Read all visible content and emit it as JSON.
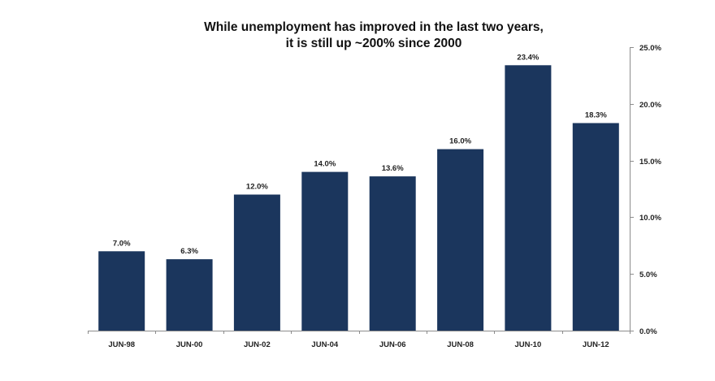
{
  "chart_data": {
    "type": "bar",
    "title": [
      "While unemployment has improved in the last two years,",
      "it is still up ~200% since 2000"
    ],
    "xlabel": "",
    "ylabel": "",
    "categories": [
      "JUN-98",
      "JUN-00",
      "JUN-02",
      "JUN-04",
      "JUN-06",
      "JUN-08",
      "JUN-10",
      "JUN-12"
    ],
    "values": [
      7.0,
      6.3,
      12.0,
      14.0,
      13.6,
      16.0,
      23.4,
      18.3
    ],
    "data_labels": [
      "7.0%",
      "6.3%",
      "12.0%",
      "14.0%",
      "13.6%",
      "16.0%",
      "23.4%",
      "18.3%"
    ],
    "ylim": [
      0,
      25
    ],
    "y_ticks": [
      0,
      5,
      10,
      15,
      20,
      25
    ],
    "y_tick_labels": [
      "0.0%",
      "5.0%",
      "10.0%",
      "15.0%",
      "20.0%",
      "25.0%"
    ],
    "y_axis_side": "right",
    "grid": false,
    "legend": "none",
    "bar_color": "#1b365d"
  }
}
